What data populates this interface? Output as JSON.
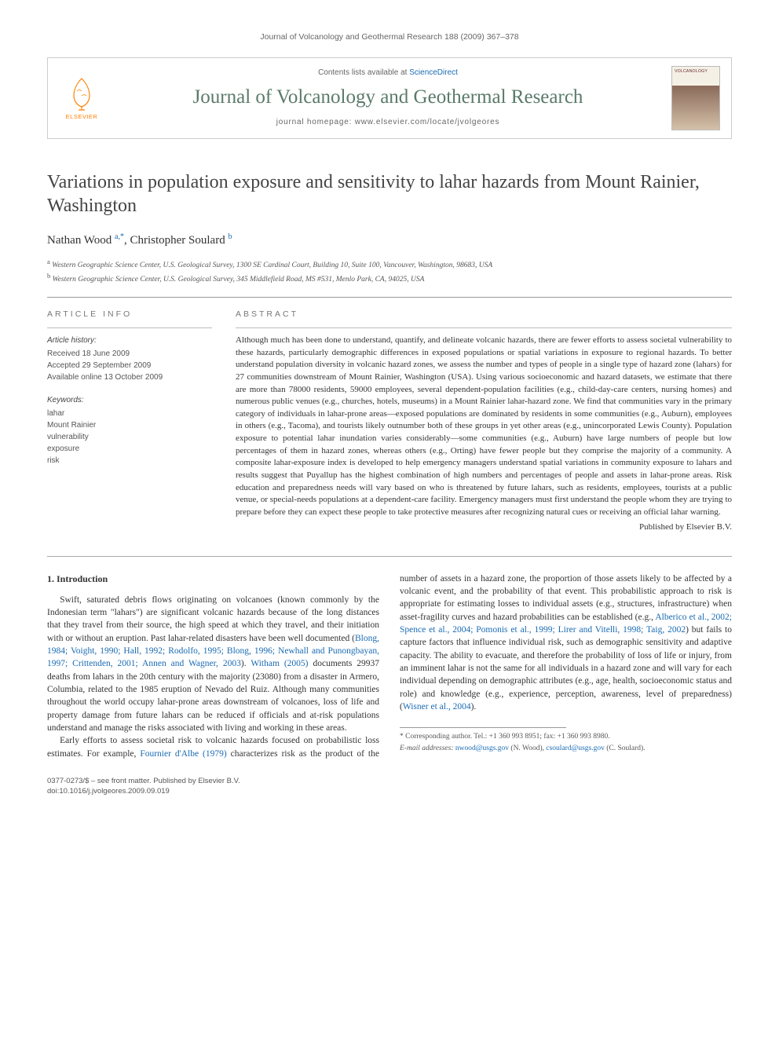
{
  "running_head": "Journal of Volcanology and Geothermal Research 188 (2009) 367–378",
  "masthead": {
    "publisher_label": "ELSEVIER",
    "contents_prefix": "Contents lists available at ",
    "contents_link_text": "ScienceDirect",
    "journal_name": "Journal of Volcanology and Geothermal Research",
    "homepage_prefix": "journal homepage: ",
    "homepage_url": "www.elsevier.com/locate/jvolgeores",
    "cover_word": "VOLCANOLOGY"
  },
  "title": "Variations in population exposure and sensitivity to lahar hazards from Mount Rainier, Washington",
  "authors_html": "Nathan Wood <sup>a,</sup><span class='sup-star'><sup>*</sup></span>, Christopher Soulard <sup>b</sup>",
  "affiliations": {
    "a": "a Western Geographic Science Center, U.S. Geological Survey, 1300 SE Cardinal Court, Building 10, Suite 100, Vancouver, Washington, 98683, USA",
    "b": "b Western Geographic Science Center, U.S. Geological Survey, 345 Middlefield Road, MS #531, Menlo Park, CA, 94025, USA"
  },
  "article_info": {
    "heading": "article info",
    "history_label": "Article history:",
    "received": "Received 18 June 2009",
    "accepted": "Accepted 29 September 2009",
    "online": "Available online 13 October 2009",
    "keywords_label": "Keywords:",
    "keywords": [
      "lahar",
      "Mount Rainier",
      "vulnerability",
      "exposure",
      "risk"
    ]
  },
  "abstract": {
    "heading": "abstract",
    "text": "Although much has been done to understand, quantify, and delineate volcanic hazards, there are fewer efforts to assess societal vulnerability to these hazards, particularly demographic differences in exposed populations or spatial variations in exposure to regional hazards. To better understand population diversity in volcanic hazard zones, we assess the number and types of people in a single type of hazard zone (lahars) for 27 communities downstream of Mount Rainier, Washington (USA). Using various socioeconomic and hazard datasets, we estimate that there are more than 78000 residents, 59000 employees, several dependent-population facilities (e.g., child-day-care centers, nursing homes) and numerous public venues (e.g., churches, hotels, museums) in a Mount Rainier lahar-hazard zone. We find that communities vary in the primary category of individuals in lahar-prone areas—exposed populations are dominated by residents in some communities (e.g., Auburn), employees in others (e.g., Tacoma), and tourists likely outnumber both of these groups in yet other areas (e.g., unincorporated Lewis County). Population exposure to potential lahar inundation varies considerably—some communities (e.g., Auburn) have large numbers of people but low percentages of them in hazard zones, whereas others (e.g., Orting) have fewer people but they comprise the majority of a community. A composite lahar-exposure index is developed to help emergency managers understand spatial variations in community exposure to lahars and results suggest that Puyallup has the highest combination of high numbers and percentages of people and assets in lahar-prone areas. Risk education and preparedness needs will vary based on who is threatened by future lahars, such as residents, employees, tourists at a public venue, or special-needs populations at a dependent-care facility. Emergency managers must first understand the people whom they are trying to prepare before they can expect these people to take protective measures after recognizing natural cues or receiving an official lahar warning.",
    "publisher_line": "Published by Elsevier B.V."
  },
  "section1": {
    "heading": "1. Introduction",
    "p1_pre": "Swift, saturated debris flows originating on volcanoes (known commonly by the Indonesian term \"lahars\") are significant volcanic hazards because of the long distances that they travel from their source, the high speed at which they travel, and their initiation with or without an eruption. Past lahar-related disasters have been well documented (",
    "p1_cite1": "Blong, 1984; Voight, 1990; Hall, 1992; Rodolfo, 1995; Blong, 1996; Newhall and Punongbayan, 1997; Crittenden, 2001; Annen and Wagner, 2003",
    "p1_mid": "). ",
    "p1_cite2": "Witham (2005)",
    "p1_post": " documents 29937 deaths from lahars in the 20th century with the majority (23080) from a disaster in Armero, Columbia, related to the 1985 eruption of Nevado del Ruiz. Although many communities throughout the world occupy lahar-prone areas downstream of volcanoes, loss of life and property damage from future lahars can be reduced if officials and at-risk populations understand and manage the risks associated with living and working in these areas.",
    "p2_pre": "Early efforts to assess societal risk to volcanic hazards focused on probabilistic loss estimates. For example, ",
    "p2_cite1": "Fournier d'Albe (1979)",
    "p2_mid1": " characterizes risk as the product of the number of assets in a hazard zone, the proportion of those assets likely to be affected by a volcanic event, and the probability of that event. This probabilistic approach to risk is appropriate for estimating losses to individual assets (e.g., structures, infrastructure) when asset-fragility curves and hazard probabilities can be established (e.g., ",
    "p2_cite2": "Alberico et al., 2002; Spence et al., 2004; Pomonis et al., 1999; Lirer and Vitelli, 1998; Taig, 2002",
    "p2_mid2": ") but fails to capture factors that influence individual risk, such as demographic sensitivity and adaptive capacity. The ability to evacuate, and therefore the probability of loss of life or injury, from an imminent lahar is not the same for all individuals in a hazard zone and will vary for each individual depending on demographic attributes (e.g., age, health, socioeconomic status and role) and knowledge (e.g., experience, perception, awareness, level of preparedness) (",
    "p2_cite3": "Wisner et al., 2004",
    "p2_post": ")."
  },
  "footnote": {
    "corr": "* Corresponding author. Tel.: +1 360 993 8951; fax: +1 360 993 8980.",
    "email_label": "E-mail addresses:",
    "email1": "nwood@usgs.gov",
    "email1_person": " (N. Wood), ",
    "email2": "csoulard@usgs.gov",
    "email2_person": " (C. Soulard)."
  },
  "footer": {
    "issn_line": "0377-0273/$ – see front matter. Published by Elsevier B.V.",
    "doi_line": "doi:10.1016/j.jvolgeores.2009.09.019"
  },
  "colors": {
    "link": "#1a6bb3",
    "journal_green": "#5a7a6a",
    "publisher_orange": "#ff8000",
    "text": "#333333",
    "muted": "#666666",
    "rule": "#999999"
  },
  "typography": {
    "body_font": "Georgia, 'Times New Roman', serif",
    "ui_font": "Arial, sans-serif",
    "title_pt": 24,
    "journal_pt": 25,
    "authors_pt": 15,
    "body_pt": 11.5,
    "abstract_pt": 11,
    "footnote_pt": 9.5
  }
}
